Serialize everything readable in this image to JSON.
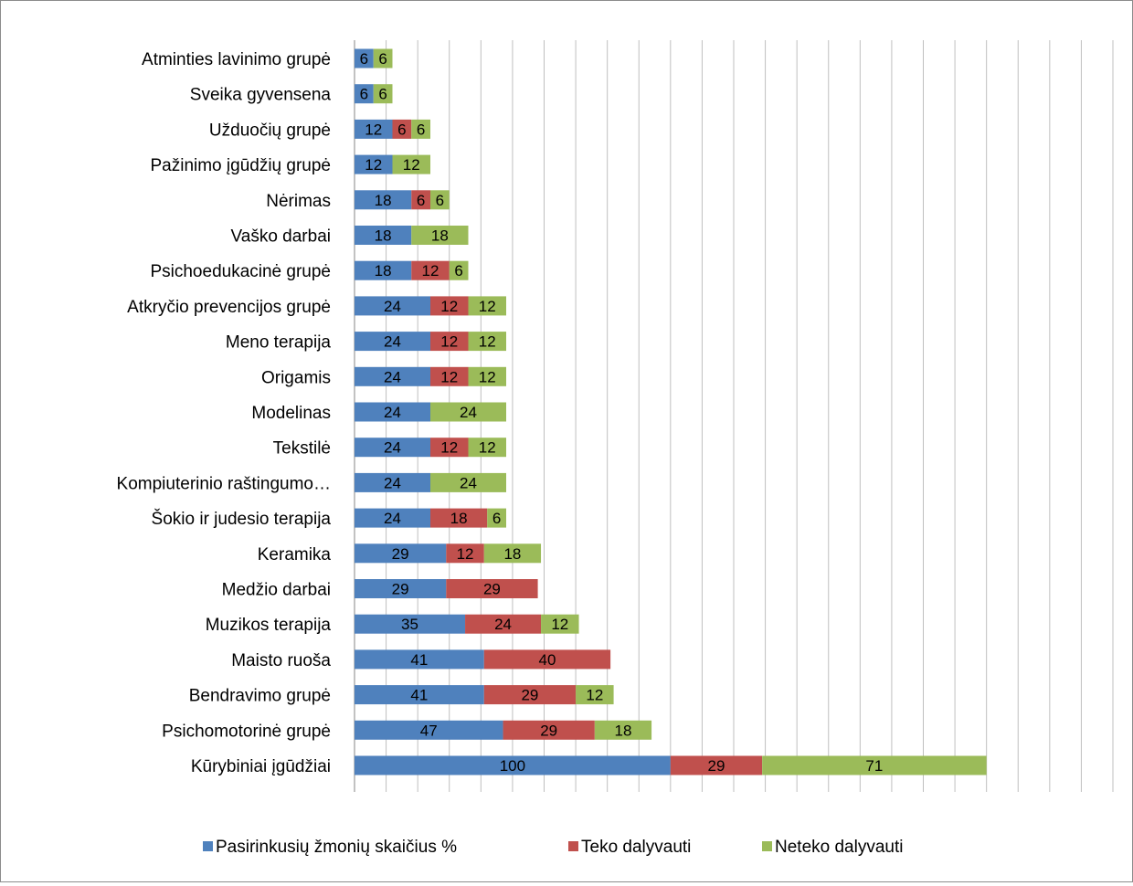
{
  "chart_data": {
    "type": "bar",
    "orientation": "horizontal",
    "stacked": true,
    "categories": [
      "Atminties lavinimo grupė",
      "Sveika gyvensena",
      "Užduočių grupė",
      "Pažinimo įgūdžių grupė",
      "Nėrimas",
      "Vaško darbai",
      "Psichoedukacinė grupė",
      "Atkryčio prevencijos grupė",
      "Meno terapija",
      "Origamis",
      "Modelinas",
      "Tekstilė",
      "Kompiuterinio raštingumo…",
      "Šokio ir judesio terapija",
      "Keramika",
      "Medžio darbai",
      "Muzikos terapija",
      "Maisto ruoša",
      "Bendravimo grupė",
      "Psichomotorinė grupė",
      "Kūrybiniai įgūdžiai"
    ],
    "series": [
      {
        "name": "Pasirinkusių žmonių skaičius %",
        "color": "#4f81bd",
        "values": [
          6,
          6,
          12,
          12,
          18,
          18,
          18,
          24,
          24,
          24,
          24,
          24,
          24,
          24,
          29,
          29,
          35,
          41,
          41,
          47,
          100
        ]
      },
      {
        "name": "Teko dalyvauti",
        "color": "#c0504d",
        "values": [
          0,
          0,
          6,
          0,
          6,
          0,
          12,
          12,
          12,
          12,
          0,
          12,
          0,
          18,
          12,
          29,
          24,
          40,
          29,
          29,
          29
        ]
      },
      {
        "name": "Neteko dalyvauti",
        "color": "#9bbb59",
        "values": [
          6,
          6,
          6,
          12,
          6,
          18,
          6,
          12,
          12,
          12,
          24,
          12,
          24,
          6,
          18,
          0,
          12,
          0,
          12,
          18,
          71
        ]
      }
    ],
    "xlim": [
      0,
      240
    ],
    "x_gridline_step": 10,
    "x_tick_labels_shown": false,
    "grid": true,
    "data_labels": true,
    "legend": "bottom",
    "title": "",
    "xlabel": "",
    "ylabel": ""
  }
}
